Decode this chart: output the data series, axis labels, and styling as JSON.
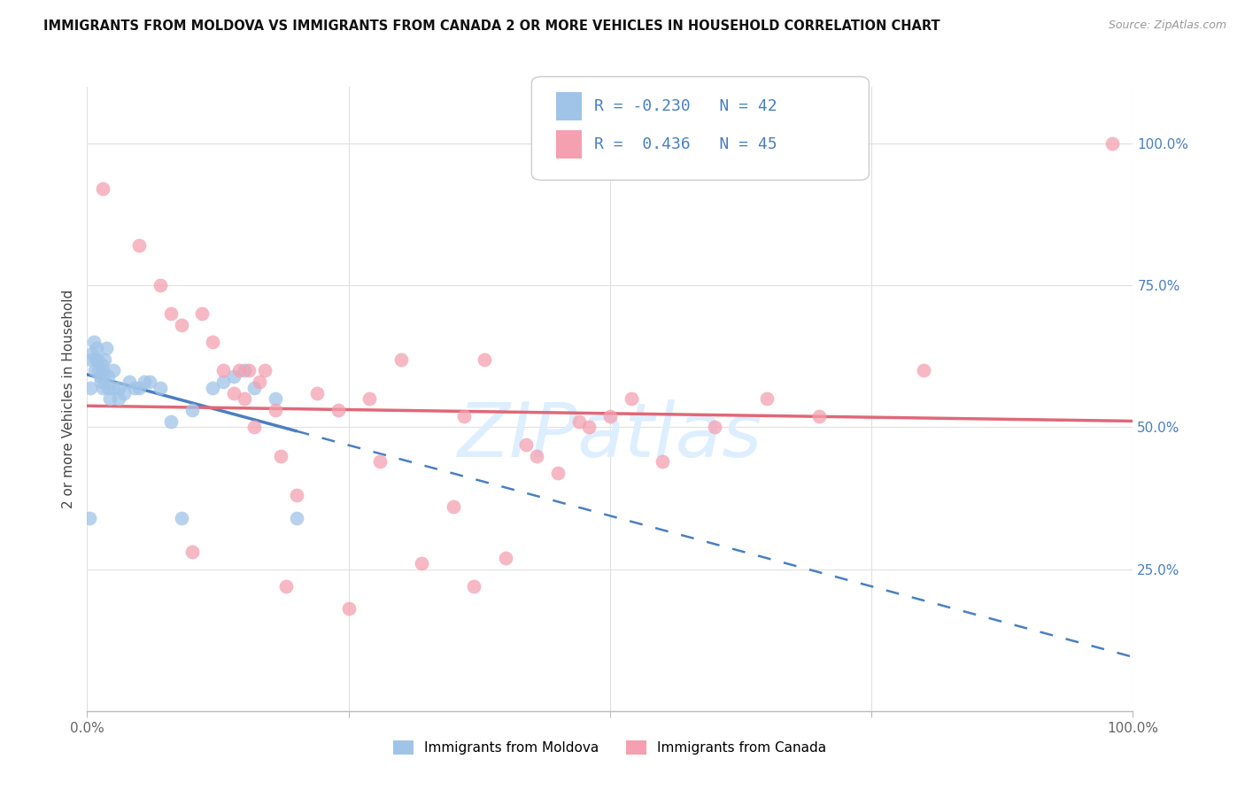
{
  "title": "IMMIGRANTS FROM MOLDOVA VS IMMIGRANTS FROM CANADA 2 OR MORE VEHICLES IN HOUSEHOLD CORRELATION CHART",
  "source": "Source: ZipAtlas.com",
  "ylabel": "2 or more Vehicles in Household",
  "legend_label1": "Immigrants from Moldova",
  "legend_label2": "Immigrants from Canada",
  "R1": -0.23,
  "N1": 42,
  "R2": 0.436,
  "N2": 45,
  "color_moldova": "#a0c4e8",
  "color_canada": "#f4a0b0",
  "color_line_moldova": "#4a7fc1",
  "color_line_canada": "#e06878",
  "moldova_x": [
    0.2,
    0.3,
    0.4,
    0.5,
    0.6,
    0.7,
    0.8,
    0.9,
    1.0,
    1.1,
    1.2,
    1.3,
    1.4,
    1.5,
    1.5,
    1.6,
    1.7,
    1.8,
    2.0,
    2.0,
    2.2,
    2.5,
    2.5,
    3.0,
    3.0,
    3.5,
    4.0,
    4.5,
    5.0,
    5.5,
    6.0,
    7.0,
    8.0,
    9.0,
    10.0,
    12.0,
    13.0,
    14.0,
    15.0,
    16.0,
    18.0,
    20.0
  ],
  "moldova_y": [
    34.0,
    57.0,
    62.0,
    63.0,
    65.0,
    60.0,
    62.0,
    64.0,
    62.0,
    60.0,
    59.0,
    58.0,
    61.0,
    57.0,
    60.0,
    59.0,
    62.0,
    64.0,
    57.0,
    59.0,
    55.0,
    57.0,
    60.0,
    55.0,
    57.0,
    56.0,
    58.0,
    57.0,
    57.0,
    58.0,
    58.0,
    57.0,
    51.0,
    34.0,
    53.0,
    57.0,
    58.0,
    59.0,
    60.0,
    57.0,
    55.0,
    34.0
  ],
  "canada_x": [
    1.5,
    5.0,
    7.0,
    8.0,
    9.0,
    10.0,
    11.0,
    12.0,
    13.0,
    14.0,
    14.5,
    15.0,
    15.5,
    16.0,
    16.5,
    17.0,
    18.0,
    18.5,
    19.0,
    20.0,
    22.0,
    24.0,
    25.0,
    27.0,
    28.0,
    30.0,
    32.0,
    35.0,
    36.0,
    37.0,
    38.0,
    40.0,
    42.0,
    43.0,
    45.0,
    47.0,
    48.0,
    50.0,
    52.0,
    55.0,
    60.0,
    65.0,
    70.0,
    80.0,
    98.0
  ],
  "canada_y": [
    92.0,
    82.0,
    75.0,
    70.0,
    68.0,
    28.0,
    70.0,
    65.0,
    60.0,
    56.0,
    60.0,
    55.0,
    60.0,
    50.0,
    58.0,
    60.0,
    53.0,
    45.0,
    22.0,
    38.0,
    56.0,
    53.0,
    18.0,
    55.0,
    44.0,
    62.0,
    26.0,
    36.0,
    52.0,
    22.0,
    62.0,
    27.0,
    47.0,
    45.0,
    42.0,
    51.0,
    50.0,
    52.0,
    55.0,
    44.0,
    50.0,
    55.0,
    52.0,
    60.0,
    100.0
  ],
  "xlim": [
    0,
    100
  ],
  "ylim": [
    0,
    110
  ],
  "background_color": "#ffffff",
  "grid_color": "#e0e0e0",
  "watermark_color": "#ddeeff",
  "line_moldova_start_x": 0.0,
  "line_moldova_end_x": 20.0,
  "line_canada_start_x": 0.0,
  "line_canada_end_x": 100.0
}
